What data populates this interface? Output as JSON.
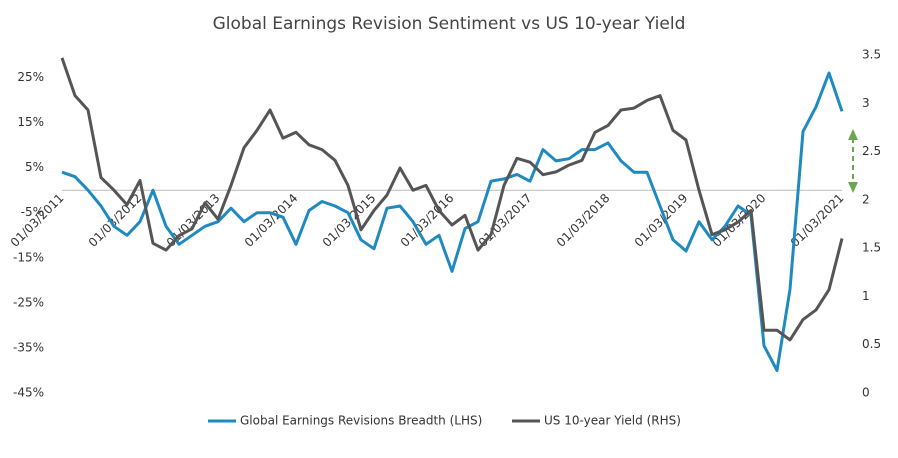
{
  "chart_data": {
    "type": "line",
    "title": "Global Earnings Revision Sentiment vs US 10-year Yield",
    "categories": [
      "01/03/2011",
      null,
      null,
      null,
      null,
      null,
      "01/03/2012",
      null,
      null,
      null,
      null,
      null,
      "01/03/2013",
      null,
      null,
      null,
      null,
      null,
      "01/03/2014",
      null,
      null,
      null,
      null,
      null,
      "01/03/2015",
      null,
      null,
      null,
      null,
      null,
      "01/03/2016",
      null,
      null,
      null,
      null,
      null,
      "01/03/2017",
      null,
      null,
      null,
      null,
      null,
      "01/03/2018",
      null,
      null,
      null,
      null,
      null,
      "01/03/2019",
      null,
      null,
      null,
      null,
      null,
      "01/03/2020",
      null,
      null,
      null,
      null,
      null,
      "01/03/2021"
    ],
    "series": [
      {
        "name": "Global Earnings Revisions Breadth (LHS)",
        "color": "#1f8ac0",
        "axis": "y",
        "values": [
          4,
          3,
          0,
          -3.5,
          -8,
          -10,
          -7,
          0,
          -8,
          -12,
          -10,
          -8,
          -7,
          -4,
          -7,
          -5,
          -5,
          -6,
          -12,
          -4.5,
          -2.5,
          -3.5,
          -5,
          -11,
          -13,
          -4,
          -3.5,
          -7,
          -12,
          -10,
          -18,
          -8.5,
          -7,
          2,
          2.5,
          3.5,
          2,
          9,
          6.5,
          7,
          9,
          9,
          10.5,
          6.5,
          4,
          4,
          -3.5,
          -11,
          -13.5,
          -7,
          -11,
          -8,
          -3.5,
          -5.5,
          -34.5,
          -40,
          -22,
          13,
          18.5,
          26,
          17.5
        ]
      },
      {
        "name": "US 10-year Yield (RHS)",
        "color": "#555555",
        "axis": "y2",
        "values": [
          3.47,
          3.08,
          2.93,
          2.23,
          2.1,
          1.95,
          2.2,
          1.55,
          1.48,
          1.63,
          1.7,
          1.97,
          1.8,
          2.15,
          2.54,
          2.72,
          2.93,
          2.64,
          2.7,
          2.57,
          2.52,
          2.41,
          2.15,
          1.69,
          1.89,
          2.05,
          2.33,
          2.1,
          2.15,
          1.89,
          1.74,
          1.84,
          1.48,
          1.64,
          2.15,
          2.43,
          2.39,
          2.26,
          2.29,
          2.36,
          2.41,
          2.7,
          2.77,
          2.93,
          2.95,
          3.03,
          3.08,
          2.72,
          2.62,
          2.1,
          1.64,
          1.69,
          1.77,
          1.89,
          0.65,
          0.65,
          0.55,
          0.76,
          0.86,
          1.07,
          1.6
        ]
      }
    ],
    "ylim": [
      -45,
      30
    ],
    "yticks": [
      {
        "value": -45,
        "label": "-45%"
      },
      {
        "value": -35,
        "label": "-35%"
      },
      {
        "value": -25,
        "label": "-25%"
      },
      {
        "value": -15,
        "label": "-15%"
      },
      {
        "value": -5,
        "label": "-5%"
      },
      {
        "value": 5,
        "label": "5%"
      },
      {
        "value": 15,
        "label": "15%"
      },
      {
        "value": 25,
        "label": "25%"
      }
    ],
    "y2lim": [
      0,
      3.5
    ],
    "y2ticks": [
      0,
      0.5,
      1,
      1.5,
      2,
      2.5,
      3,
      3.5
    ],
    "legend": "bottom"
  }
}
